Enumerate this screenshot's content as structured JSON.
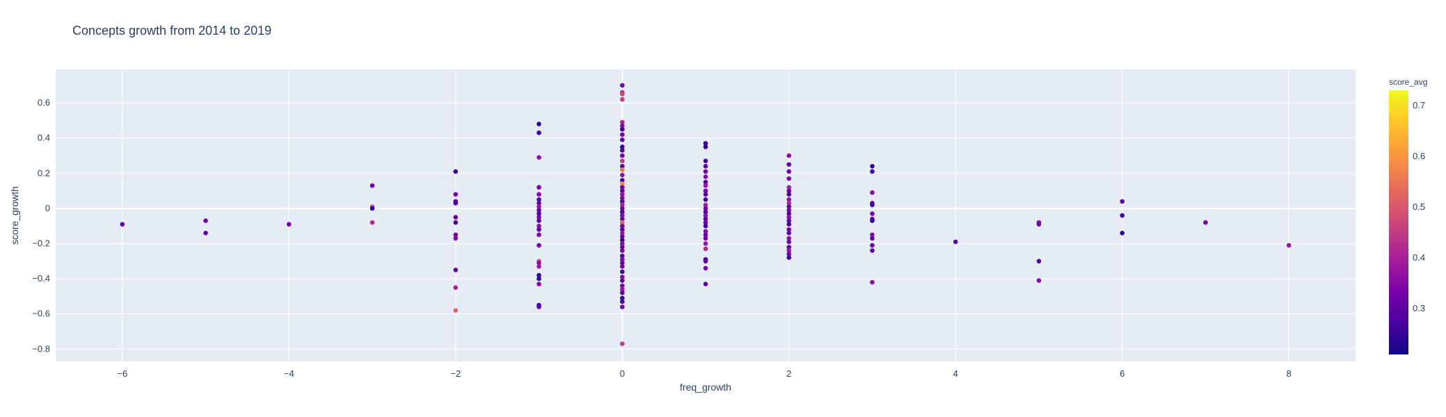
{
  "chart_data": {
    "type": "scatter",
    "title": "Concepts growth from 2014 to 2019",
    "xlabel": "freq_growth",
    "ylabel": "score_growth",
    "xlim": [
      -6.8,
      8.8
    ],
    "ylim": [
      -0.87,
      0.79
    ],
    "x_ticks": [
      -6,
      -4,
      -2,
      0,
      2,
      4,
      6,
      8
    ],
    "x_tick_labels": [
      "−6",
      "−4",
      "−2",
      "0",
      "2",
      "4",
      "6",
      "8"
    ],
    "y_ticks": [
      -0.8,
      -0.6,
      -0.4,
      -0.2,
      0,
      0.2,
      0.4,
      0.6
    ],
    "y_tick_labels": [
      "−0.8",
      "−0.6",
      "−0.4",
      "−0.2",
      "0",
      "0.2",
      "0.4",
      "0.6"
    ],
    "grid": true,
    "colorbar": {
      "title": "score_avg",
      "range": [
        0.21,
        0.73
      ],
      "ticks": [
        0.3,
        0.4,
        0.5,
        0.6,
        0.7
      ],
      "tick_labels": [
        "0.3",
        "0.4",
        "0.5",
        "0.6",
        "0.7"
      ],
      "colorscale": [
        "#0d0887",
        "#46039f",
        "#7201a8",
        "#9c179e",
        "#bd3786",
        "#d8576b",
        "#ed7953",
        "#fb9f3a",
        "#fdca26",
        "#f0f921"
      ]
    },
    "points": [
      {
        "x": -6,
        "y": -0.09,
        "c": 0.3
      },
      {
        "x": -5,
        "y": -0.07,
        "c": 0.33
      },
      {
        "x": -5,
        "y": -0.14,
        "c": 0.3
      },
      {
        "x": -4,
        "y": -0.09,
        "c": 0.33
      },
      {
        "x": -3,
        "y": 0.13,
        "c": 0.33
      },
      {
        "x": -3,
        "y": 0.01,
        "c": 0.5
      },
      {
        "x": -3,
        "y": 0.0,
        "c": 0.24
      },
      {
        "x": -3,
        "y": -0.08,
        "c": 0.42
      },
      {
        "x": -2,
        "y": 0.21,
        "c": 0.25
      },
      {
        "x": -2,
        "y": 0.08,
        "c": 0.33
      },
      {
        "x": -2,
        "y": 0.04,
        "c": 0.3
      },
      {
        "x": -2,
        "y": 0.03,
        "c": 0.28
      },
      {
        "x": -2,
        "y": -0.05,
        "c": 0.3
      },
      {
        "x": -2,
        "y": -0.08,
        "c": 0.27
      },
      {
        "x": -2,
        "y": -0.15,
        "c": 0.32
      },
      {
        "x": -2,
        "y": -0.17,
        "c": 0.35
      },
      {
        "x": -2,
        "y": -0.35,
        "c": 0.3
      },
      {
        "x": -2,
        "y": -0.45,
        "c": 0.4
      },
      {
        "x": -2,
        "y": -0.58,
        "c": 0.52
      },
      {
        "x": -1,
        "y": 0.48,
        "c": 0.24
      },
      {
        "x": -1,
        "y": 0.43,
        "c": 0.26
      },
      {
        "x": -1,
        "y": 0.29,
        "c": 0.36
      },
      {
        "x": -1,
        "y": 0.12,
        "c": 0.33
      },
      {
        "x": -1,
        "y": 0.08,
        "c": 0.35
      },
      {
        "x": -1,
        "y": 0.05,
        "c": 0.29
      },
      {
        "x": -1,
        "y": 0.03,
        "c": 0.3
      },
      {
        "x": -1,
        "y": 0.01,
        "c": 0.38
      },
      {
        "x": -1,
        "y": -0.01,
        "c": 0.31
      },
      {
        "x": -1,
        "y": -0.03,
        "c": 0.27
      },
      {
        "x": -1,
        "y": -0.05,
        "c": 0.33
      },
      {
        "x": -1,
        "y": -0.07,
        "c": 0.3
      },
      {
        "x": -1,
        "y": -0.1,
        "c": 0.36
      },
      {
        "x": -1,
        "y": -0.12,
        "c": 0.29
      },
      {
        "x": -1,
        "y": -0.15,
        "c": 0.35
      },
      {
        "x": -1,
        "y": -0.21,
        "c": 0.33
      },
      {
        "x": -1,
        "y": -0.3,
        "c": 0.48
      },
      {
        "x": -1,
        "y": -0.31,
        "c": 0.36
      },
      {
        "x": -1,
        "y": -0.33,
        "c": 0.38
      },
      {
        "x": -1,
        "y": -0.38,
        "c": 0.25
      },
      {
        "x": -1,
        "y": -0.4,
        "c": 0.24
      },
      {
        "x": -1,
        "y": -0.43,
        "c": 0.35
      },
      {
        "x": -1,
        "y": -0.55,
        "c": 0.26
      },
      {
        "x": -1,
        "y": -0.56,
        "c": 0.3
      },
      {
        "x": 0,
        "y": 0.7,
        "c": 0.33
      },
      {
        "x": 0,
        "y": 0.66,
        "c": 0.42
      },
      {
        "x": 0,
        "y": 0.65,
        "c": 0.48
      },
      {
        "x": 0,
        "y": 0.62,
        "c": 0.45
      },
      {
        "x": 0,
        "y": 0.49,
        "c": 0.4
      },
      {
        "x": 0,
        "y": 0.47,
        "c": 0.36
      },
      {
        "x": 0,
        "y": 0.45,
        "c": 0.26
      },
      {
        "x": 0,
        "y": 0.42,
        "c": 0.33
      },
      {
        "x": 0,
        "y": 0.39,
        "c": 0.31
      },
      {
        "x": 0,
        "y": 0.35,
        "c": 0.25
      },
      {
        "x": 0,
        "y": 0.33,
        "c": 0.28
      },
      {
        "x": 0,
        "y": 0.3,
        "c": 0.33
      },
      {
        "x": 0,
        "y": 0.27,
        "c": 0.44
      },
      {
        "x": 0,
        "y": 0.24,
        "c": 0.3
      },
      {
        "x": 0,
        "y": 0.22,
        "c": 0.55
      },
      {
        "x": 0,
        "y": 0.19,
        "c": 0.36
      },
      {
        "x": 0,
        "y": 0.16,
        "c": 0.27
      },
      {
        "x": 0,
        "y": 0.14,
        "c": 0.58
      },
      {
        "x": 0,
        "y": 0.12,
        "c": 0.33
      },
      {
        "x": 0,
        "y": 0.1,
        "c": 0.3
      },
      {
        "x": 0,
        "y": 0.08,
        "c": 0.38
      },
      {
        "x": 0,
        "y": 0.06,
        "c": 0.35
      },
      {
        "x": 0,
        "y": 0.04,
        "c": 0.29
      },
      {
        "x": 0,
        "y": 0.02,
        "c": 0.4
      },
      {
        "x": 0,
        "y": 0.0,
        "c": 0.33
      },
      {
        "x": 0,
        "y": -0.02,
        "c": 0.27
      },
      {
        "x": 0,
        "y": -0.04,
        "c": 0.35
      },
      {
        "x": 0,
        "y": -0.06,
        "c": 0.31
      },
      {
        "x": 0,
        "y": -0.08,
        "c": 0.52
      },
      {
        "x": 0,
        "y": -0.1,
        "c": 0.33
      },
      {
        "x": 0,
        "y": -0.12,
        "c": 0.29
      },
      {
        "x": 0,
        "y": -0.14,
        "c": 0.38
      },
      {
        "x": 0,
        "y": -0.16,
        "c": 0.33
      },
      {
        "x": 0,
        "y": -0.18,
        "c": 0.25
      },
      {
        "x": 0,
        "y": -0.2,
        "c": 0.36
      },
      {
        "x": 0,
        "y": -0.22,
        "c": 0.3
      },
      {
        "x": 0,
        "y": -0.24,
        "c": 0.33
      },
      {
        "x": 0,
        "y": -0.27,
        "c": 0.28
      },
      {
        "x": 0,
        "y": -0.29,
        "c": 0.35
      },
      {
        "x": 0,
        "y": -0.31,
        "c": 0.3
      },
      {
        "x": 0,
        "y": -0.33,
        "c": 0.33
      },
      {
        "x": 0,
        "y": -0.36,
        "c": 0.27
      },
      {
        "x": 0,
        "y": -0.39,
        "c": 0.36
      },
      {
        "x": 0,
        "y": -0.41,
        "c": 0.3
      },
      {
        "x": 0,
        "y": -0.44,
        "c": 0.33
      },
      {
        "x": 0,
        "y": -0.46,
        "c": 0.38
      },
      {
        "x": 0,
        "y": -0.48,
        "c": 0.3
      },
      {
        "x": 0,
        "y": -0.51,
        "c": 0.25
      },
      {
        "x": 0,
        "y": -0.53,
        "c": 0.27
      },
      {
        "x": 0,
        "y": -0.56,
        "c": 0.33
      },
      {
        "x": 0,
        "y": -0.77,
        "c": 0.45
      },
      {
        "x": 1,
        "y": 0.37,
        "c": 0.26
      },
      {
        "x": 1,
        "y": 0.35,
        "c": 0.25
      },
      {
        "x": 1,
        "y": 0.27,
        "c": 0.27
      },
      {
        "x": 1,
        "y": 0.24,
        "c": 0.3
      },
      {
        "x": 1,
        "y": 0.21,
        "c": 0.33
      },
      {
        "x": 1,
        "y": 0.18,
        "c": 0.35
      },
      {
        "x": 1,
        "y": 0.15,
        "c": 0.28
      },
      {
        "x": 1,
        "y": 0.13,
        "c": 0.38
      },
      {
        "x": 1,
        "y": 0.1,
        "c": 0.33
      },
      {
        "x": 1,
        "y": 0.08,
        "c": 0.3
      },
      {
        "x": 1,
        "y": 0.05,
        "c": 0.27
      },
      {
        "x": 1,
        "y": 0.02,
        "c": 0.4
      },
      {
        "x": 1,
        "y": 0.0,
        "c": 0.33
      },
      {
        "x": 1,
        "y": -0.02,
        "c": 0.29
      },
      {
        "x": 1,
        "y": -0.04,
        "c": 0.36
      },
      {
        "x": 1,
        "y": -0.06,
        "c": 0.3
      },
      {
        "x": 1,
        "y": -0.08,
        "c": 0.33
      },
      {
        "x": 1,
        "y": -0.1,
        "c": 0.27
      },
      {
        "x": 1,
        "y": -0.13,
        "c": 0.35
      },
      {
        "x": 1,
        "y": -0.15,
        "c": 0.3
      },
      {
        "x": 1,
        "y": -0.17,
        "c": 0.33
      },
      {
        "x": 1,
        "y": -0.2,
        "c": 0.38
      },
      {
        "x": 1,
        "y": -0.23,
        "c": 0.42
      },
      {
        "x": 1,
        "y": -0.29,
        "c": 0.25
      },
      {
        "x": 1,
        "y": -0.3,
        "c": 0.3
      },
      {
        "x": 1,
        "y": -0.34,
        "c": 0.33
      },
      {
        "x": 1,
        "y": -0.43,
        "c": 0.3
      },
      {
        "x": 2,
        "y": 0.3,
        "c": 0.36
      },
      {
        "x": 2,
        "y": 0.25,
        "c": 0.3
      },
      {
        "x": 2,
        "y": 0.21,
        "c": 0.33
      },
      {
        "x": 2,
        "y": 0.17,
        "c": 0.35
      },
      {
        "x": 2,
        "y": 0.12,
        "c": 0.4
      },
      {
        "x": 2,
        "y": 0.1,
        "c": 0.33
      },
      {
        "x": 2,
        "y": 0.08,
        "c": 0.27
      },
      {
        "x": 2,
        "y": 0.05,
        "c": 0.36
      },
      {
        "x": 2,
        "y": 0.03,
        "c": 0.42
      },
      {
        "x": 2,
        "y": 0.01,
        "c": 0.3
      },
      {
        "x": 2,
        "y": -0.01,
        "c": 0.33
      },
      {
        "x": 2,
        "y": -0.03,
        "c": 0.29
      },
      {
        "x": 2,
        "y": -0.05,
        "c": 0.35
      },
      {
        "x": 2,
        "y": -0.07,
        "c": 0.3
      },
      {
        "x": 2,
        "y": -0.09,
        "c": 0.27
      },
      {
        "x": 2,
        "y": -0.12,
        "c": 0.33
      },
      {
        "x": 2,
        "y": -0.14,
        "c": 0.3
      },
      {
        "x": 2,
        "y": -0.17,
        "c": 0.36
      },
      {
        "x": 2,
        "y": -0.19,
        "c": 0.33
      },
      {
        "x": 2,
        "y": -0.22,
        "c": 0.3
      },
      {
        "x": 2,
        "y": -0.24,
        "c": 0.38
      },
      {
        "x": 2,
        "y": -0.26,
        "c": 0.33
      },
      {
        "x": 2,
        "y": -0.28,
        "c": 0.27
      },
      {
        "x": 3,
        "y": 0.24,
        "c": 0.25
      },
      {
        "x": 3,
        "y": 0.21,
        "c": 0.27
      },
      {
        "x": 3,
        "y": 0.09,
        "c": 0.36
      },
      {
        "x": 3,
        "y": 0.03,
        "c": 0.3
      },
      {
        "x": 3,
        "y": 0.02,
        "c": 0.27
      },
      {
        "x": 3,
        "y": -0.03,
        "c": 0.33
      },
      {
        "x": 3,
        "y": -0.06,
        "c": 0.3
      },
      {
        "x": 3,
        "y": -0.07,
        "c": 0.25
      },
      {
        "x": 3,
        "y": -0.15,
        "c": 0.35
      },
      {
        "x": 3,
        "y": -0.17,
        "c": 0.3
      },
      {
        "x": 3,
        "y": -0.21,
        "c": 0.33
      },
      {
        "x": 3,
        "y": -0.24,
        "c": 0.3
      },
      {
        "x": 3,
        "y": -0.42,
        "c": 0.36
      },
      {
        "x": 4,
        "y": -0.19,
        "c": 0.3
      },
      {
        "x": 5,
        "y": -0.08,
        "c": 0.35
      },
      {
        "x": 5,
        "y": -0.09,
        "c": 0.33
      },
      {
        "x": 5,
        "y": -0.3,
        "c": 0.27
      },
      {
        "x": 5,
        "y": -0.41,
        "c": 0.35
      },
      {
        "x": 6,
        "y": 0.04,
        "c": 0.3
      },
      {
        "x": 6,
        "y": -0.04,
        "c": 0.27
      },
      {
        "x": 6,
        "y": -0.14,
        "c": 0.24
      },
      {
        "x": 7,
        "y": -0.08,
        "c": 0.33
      },
      {
        "x": 8,
        "y": -0.21,
        "c": 0.38
      }
    ]
  }
}
